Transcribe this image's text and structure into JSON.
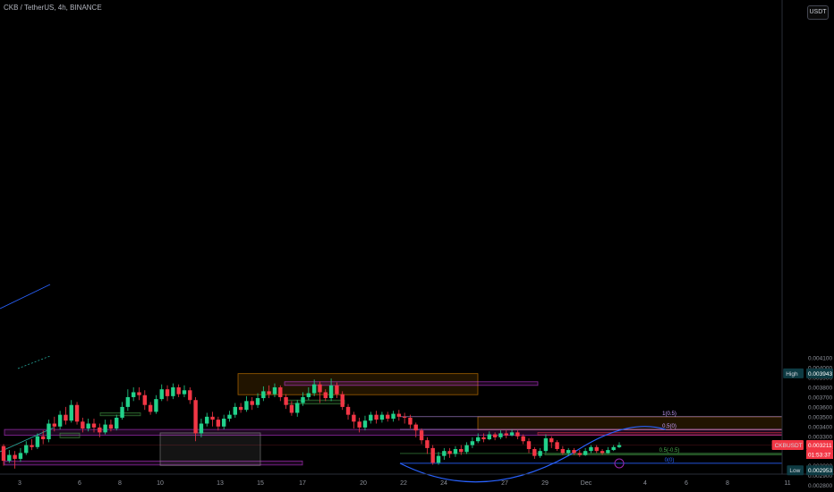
{
  "header": {
    "symbol": "CKB / TetherUS, 4h, BINANCE"
  },
  "axis": {
    "currency_button": "USDT"
  },
  "chart_data": {
    "type": "candlestick",
    "symbol": "CKBUSDT",
    "title": "CKB / TetherUS, 4h, BINANCE",
    "ylim": [
      0.00278,
      0.00423
    ],
    "y_ticks": [
      "0.004100",
      "0.004000",
      "0.003900",
      "0.003800",
      "0.003700",
      "0.003600",
      "0.003500",
      "0.003400",
      "0.003300",
      "0.003100",
      "0.003000",
      "0.002900",
      "0.002800"
    ],
    "x_ticks": [
      "3",
      "6",
      "8",
      "10",
      "13",
      "15",
      "17",
      "20",
      "22",
      "24",
      "27",
      "29",
      "Dec",
      "4",
      "6",
      "8",
      "11"
    ],
    "grid": false,
    "colors": {
      "up": "#26a69a",
      "down": "#ef5350",
      "up_vivid": "#22d18b",
      "down_vivid": "#f23645",
      "fib": "#2962ff"
    },
    "price_tags": {
      "high": {
        "label": "High",
        "value": "0.003943"
      },
      "low": {
        "label": "Low",
        "value": "0.002953"
      },
      "last": {
        "label": "CKBUSDT",
        "value": "0.003211",
        "countdown": "01:53:37"
      }
    },
    "zones": [
      {
        "name": "upper-box-left",
        "from_date": "14",
        "to_date": "25",
        "top": 0.00394,
        "bottom": 0.003725,
        "color": "#ff9800"
      },
      {
        "name": "upper-box-right",
        "from_date": "25",
        "to_date": "Dec 5",
        "top": 0.0035,
        "bottom": 0.003367,
        "color": "#ff9800"
      },
      {
        "name": "purple-band-mid",
        "from_date": "16",
        "to_date": "28",
        "top": 0.003857,
        "bottom": 0.00382,
        "color": "#e040fb"
      },
      {
        "name": "purple-band-left",
        "from_date": "2",
        "to_date": "Dec 5",
        "top": 0.00337,
        "bottom": 0.00331,
        "color": "#e040fb"
      },
      {
        "name": "purple-band-low",
        "from_date": "2",
        "to_date": "17",
        "top": 0.003048,
        "bottom": 0.003007,
        "color": "#e040fb"
      },
      {
        "name": "red-band-right",
        "from_date": "28",
        "to_date": "Dec 5",
        "top": 0.00334,
        "bottom": 0.003315,
        "color": "#f23645"
      },
      {
        "name": "green-box-a",
        "from_date": "5",
        "to_date": "6",
        "top": 0.003333,
        "bottom": 0.003285,
        "color": "#4caf50"
      },
      {
        "name": "green-box-b",
        "from_date": "7",
        "to_date": "9",
        "top": 0.00354,
        "bottom": 0.00351,
        "color": "#4caf50"
      },
      {
        "name": "green-box-c",
        "from_date": "16",
        "to_date": "19",
        "top": 0.00367,
        "bottom": 0.00363,
        "color": "#4caf50"
      },
      {
        "name": "green-box-d",
        "from_date": "29",
        "to_date": "Dec 5",
        "top": 0.003125,
        "bottom": 0.00311,
        "color": "#4caf50"
      },
      {
        "name": "tall-grey-box",
        "from_date": "10",
        "to_date": "15",
        "top": 0.003335,
        "bottom": 0.003003,
        "color": "#9e9e9e"
      }
    ],
    "fib_levels": [
      {
        "label": "1(0.5)",
        "value": 0.0035
      },
      {
        "label": "0.5(0)",
        "value": 0.00337
      },
      {
        "label": "0.5(-0.5)",
        "value": 0.003125
      },
      {
        "label": "0(0)",
        "value": 0.003025
      }
    ],
    "rounded_bottom": {
      "from_date": "21",
      "to_date": "Dec 5",
      "low": 0.002945,
      "end": 0.00337
    },
    "candles": [
      [
        3.2,
        3.05,
        3.22,
        3.0
      ],
      [
        3.05,
        3.11,
        3.16,
        3.03
      ],
      [
        3.11,
        3.07,
        3.15,
        2.97
      ],
      [
        3.07,
        3.13,
        3.18,
        3.04
      ],
      [
        3.13,
        3.21,
        3.25,
        3.11
      ],
      [
        3.21,
        3.19,
        3.27,
        3.16
      ],
      [
        3.19,
        3.3,
        3.33,
        3.17
      ],
      [
        3.3,
        3.27,
        3.36,
        3.22
      ],
      [
        3.27,
        3.43,
        3.47,
        3.24
      ],
      [
        3.43,
        3.4,
        3.5,
        3.35
      ],
      [
        3.4,
        3.52,
        3.56,
        3.37
      ],
      [
        3.52,
        3.46,
        3.6,
        3.42
      ],
      [
        3.46,
        3.62,
        3.67,
        3.44
      ],
      [
        3.62,
        3.45,
        3.65,
        3.42
      ],
      [
        3.45,
        3.38,
        3.49,
        3.34
      ],
      [
        3.38,
        3.43,
        3.48,
        3.35
      ],
      [
        3.43,
        3.39,
        3.48,
        3.34
      ],
      [
        3.39,
        3.34,
        3.43,
        3.29
      ],
      [
        3.34,
        3.42,
        3.47,
        3.32
      ],
      [
        3.42,
        3.38,
        3.47,
        3.35
      ],
      [
        3.38,
        3.49,
        3.52,
        3.36
      ],
      [
        3.49,
        3.6,
        3.65,
        3.47
      ],
      [
        3.6,
        3.7,
        3.78,
        3.56
      ],
      [
        3.7,
        3.75,
        3.8,
        3.66
      ],
      [
        3.75,
        3.72,
        3.8,
        3.67
      ],
      [
        3.72,
        3.62,
        3.77,
        3.57
      ],
      [
        3.62,
        3.55,
        3.65,
        3.52
      ],
      [
        3.55,
        3.68,
        3.72,
        3.53
      ],
      [
        3.68,
        3.78,
        3.83,
        3.66
      ],
      [
        3.78,
        3.71,
        3.82,
        3.66
      ],
      [
        3.71,
        3.8,
        3.84,
        3.68
      ],
      [
        3.8,
        3.73,
        3.83,
        3.7
      ],
      [
        3.73,
        3.77,
        3.82,
        3.7
      ],
      [
        3.77,
        3.67,
        3.8,
        3.63
      ],
      [
        3.67,
        3.33,
        3.7,
        3.25
      ],
      [
        3.33,
        3.43,
        3.48,
        3.29
      ],
      [
        3.43,
        3.5,
        3.54,
        3.4
      ],
      [
        3.5,
        3.47,
        3.55,
        3.4
      ],
      [
        3.47,
        3.4,
        3.5,
        3.36
      ],
      [
        3.4,
        3.48,
        3.52,
        3.37
      ],
      [
        3.48,
        3.52,
        3.56,
        3.45
      ],
      [
        3.52,
        3.6,
        3.64,
        3.49
      ],
      [
        3.6,
        3.57,
        3.64,
        3.54
      ],
      [
        3.57,
        3.66,
        3.71,
        3.55
      ],
      [
        3.66,
        3.62,
        3.7,
        3.57
      ],
      [
        3.62,
        3.69,
        3.74,
        3.59
      ],
      [
        3.69,
        3.76,
        3.81,
        3.66
      ],
      [
        3.76,
        3.73,
        3.82,
        3.69
      ],
      [
        3.73,
        3.8,
        3.84,
        3.7
      ],
      [
        3.8,
        3.7,
        3.82,
        3.66
      ],
      [
        3.7,
        3.62,
        3.73,
        3.58
      ],
      [
        3.62,
        3.54,
        3.66,
        3.51
      ],
      [
        3.54,
        3.64,
        3.67,
        3.5
      ],
      [
        3.64,
        3.7,
        3.75,
        3.61
      ],
      [
        3.7,
        3.74,
        3.8,
        3.67
      ],
      [
        3.74,
        3.83,
        3.88,
        3.71
      ],
      [
        3.83,
        3.75,
        3.86,
        3.64
      ],
      [
        3.75,
        3.69,
        3.78,
        3.66
      ],
      [
        3.69,
        3.82,
        3.89,
        3.66
      ],
      [
        3.82,
        3.73,
        3.85,
        3.69
      ],
      [
        3.73,
        3.6,
        3.76,
        3.57
      ],
      [
        3.6,
        3.52,
        3.63,
        3.47
      ],
      [
        3.52,
        3.45,
        3.55,
        3.38
      ],
      [
        3.45,
        3.39,
        3.49,
        3.34
      ],
      [
        3.39,
        3.46,
        3.51,
        3.36
      ],
      [
        3.46,
        3.52,
        3.55,
        3.43
      ],
      [
        3.52,
        3.47,
        3.56,
        3.43
      ],
      [
        3.47,
        3.52,
        3.55,
        3.44
      ],
      [
        3.52,
        3.48,
        3.55,
        3.45
      ],
      [
        3.48,
        3.53,
        3.56,
        3.45
      ],
      [
        3.53,
        3.5,
        3.57,
        3.46
      ],
      [
        3.5,
        3.49,
        3.54,
        3.43
      ],
      [
        3.49,
        3.42,
        3.52,
        3.38
      ],
      [
        3.42,
        3.36,
        3.44,
        3.29
      ],
      [
        3.36,
        3.26,
        3.38,
        3.22
      ],
      [
        3.26,
        3.18,
        3.29,
        3.12
      ],
      [
        3.18,
        3.03,
        3.21,
        3.01
      ],
      [
        3.03,
        3.1,
        3.14,
        3.01
      ],
      [
        3.1,
        3.15,
        3.18,
        3.06
      ],
      [
        3.15,
        3.12,
        3.18,
        3.08
      ],
      [
        3.12,
        3.17,
        3.2,
        3.09
      ],
      [
        3.17,
        3.14,
        3.21,
        3.11
      ],
      [
        3.14,
        3.21,
        3.24,
        3.12
      ],
      [
        3.21,
        3.25,
        3.29,
        3.18
      ],
      [
        3.25,
        3.29,
        3.33,
        3.23
      ],
      [
        3.29,
        3.27,
        3.33,
        3.24
      ],
      [
        3.27,
        3.32,
        3.35,
        3.26
      ],
      [
        3.32,
        3.29,
        3.34,
        3.26
      ],
      [
        3.29,
        3.33,
        3.36,
        3.27
      ],
      [
        3.33,
        3.31,
        3.36,
        3.28
      ],
      [
        3.31,
        3.34,
        3.37,
        3.3
      ],
      [
        3.34,
        3.3,
        3.36,
        3.27
      ],
      [
        3.3,
        3.25,
        3.32,
        3.22
      ],
      [
        3.25,
        3.17,
        3.28,
        3.13
      ],
      [
        3.17,
        3.1,
        3.19,
        3.07
      ],
      [
        3.1,
        3.15,
        3.18,
        3.08
      ],
      [
        3.15,
        3.28,
        3.32,
        3.13
      ],
      [
        3.28,
        3.24,
        3.3,
        3.18
      ],
      [
        3.24,
        3.17,
        3.26,
        3.15
      ],
      [
        3.17,
        3.13,
        3.2,
        3.11
      ],
      [
        3.13,
        3.16,
        3.18,
        3.1
      ],
      [
        3.16,
        3.13,
        3.18,
        3.11
      ],
      [
        3.13,
        3.11,
        3.16,
        3.09
      ],
      [
        3.11,
        3.15,
        3.18,
        3.1
      ],
      [
        3.15,
        3.19,
        3.21,
        3.13
      ],
      [
        3.19,
        3.15,
        3.21,
        3.13
      ],
      [
        3.15,
        3.13,
        3.17,
        3.11
      ],
      [
        3.13,
        3.16,
        3.19,
        3.12
      ],
      [
        3.16,
        3.19,
        3.21,
        3.15
      ],
      [
        3.19,
        3.21,
        3.24,
        3.18
      ]
    ]
  }
}
